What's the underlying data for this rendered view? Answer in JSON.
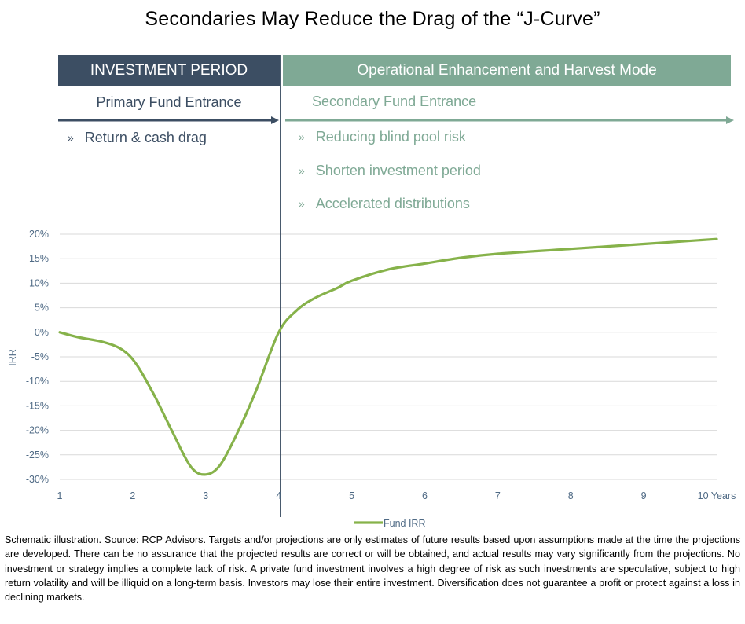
{
  "title": "Secondaries May Reduce the Drag of the “J-Curve”",
  "bands": {
    "left": "INVESTMENT PERIOD",
    "right": "Operational Enhancement and Harvest Mode"
  },
  "entrances": {
    "left": "Primary Fund Entrance",
    "right": "Secondary Fund Entrance"
  },
  "bullet_mark": "»",
  "bullets_left": [
    "Return & cash drag"
  ],
  "bullets_right": [
    "Reducing blind pool risk",
    "Shorten investment period",
    "Accelerated distributions"
  ],
  "colors": {
    "navy": "#3c4e63",
    "sage": "#7fa995",
    "line": "#86b24a",
    "grid": "#d9d9d9"
  },
  "chart_data": {
    "type": "line",
    "ylabel": "IRR",
    "xlabel": "",
    "x_tick_labels": [
      "1",
      "2",
      "3",
      "4",
      "5",
      "6",
      "7",
      "8",
      "9",
      "10 Years"
    ],
    "y_tick_labels": [
      "20%",
      "15%",
      "10%",
      "5%",
      "0%",
      "-5%",
      "-10%",
      "-15%",
      "-20%",
      "-25%",
      "-30%"
    ],
    "xlim": [
      1,
      10
    ],
    "ylim": [
      -30,
      20
    ],
    "grid": true,
    "legend_position": "bottom-center",
    "series": [
      {
        "name": "Fund IRR",
        "points": [
          [
            1,
            0
          ],
          [
            1.25,
            -1
          ],
          [
            1.6,
            -2
          ],
          [
            1.85,
            -3.5
          ],
          [
            2.05,
            -6.5
          ],
          [
            2.3,
            -13
          ],
          [
            2.55,
            -20.5
          ],
          [
            2.8,
            -27.5
          ],
          [
            3,
            -29
          ],
          [
            3.2,
            -27
          ],
          [
            3.45,
            -20
          ],
          [
            3.7,
            -11.5
          ],
          [
            4,
            0
          ],
          [
            4.25,
            4.5
          ],
          [
            4.5,
            7
          ],
          [
            4.8,
            9
          ],
          [
            5,
            10.5
          ],
          [
            5.5,
            12.8
          ],
          [
            6,
            14
          ],
          [
            6.5,
            15.2
          ],
          [
            7,
            16
          ],
          [
            8,
            17
          ],
          [
            9,
            18
          ],
          [
            10,
            19
          ]
        ]
      }
    ],
    "divider_at_x": 4
  },
  "footnote": "Schematic illustration. Source: RCP Advisors. Targets and/or projections are only estimates of future results based upon assumptions made at the time the projections are developed. There can be no assurance that the projected results are correct or will be obtained, and actual results may vary significantly from the projections. No investment or strategy implies a complete lack of risk. A private fund investment involves a high degree of risk as such investments are speculative, subject to high return volatility and will be illiquid on a long-term basis. Investors may lose their entire investment. Diversification does not guarantee a profit or protect against a loss in declining markets."
}
